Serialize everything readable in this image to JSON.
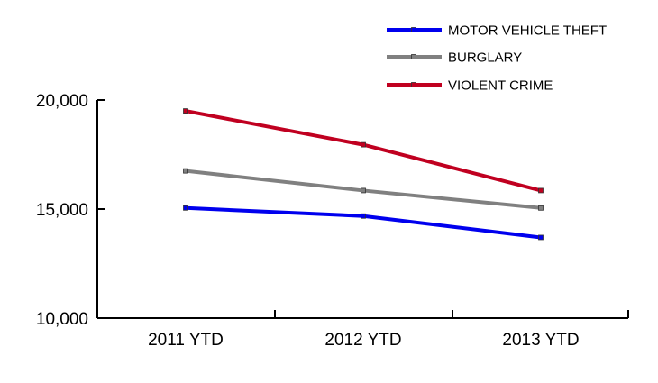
{
  "chart_data": {
    "type": "line",
    "title": "",
    "xlabel": "",
    "ylabel": "",
    "categories": [
      "2011 YTD",
      "2012 YTD",
      "2013 YTD"
    ],
    "ylim": [
      10000,
      20000
    ],
    "yticks": [
      10000,
      15000,
      20000
    ],
    "ytick_labels": [
      "10,000",
      "15,000",
      "20,000"
    ],
    "grid": false,
    "legend_position": "top-right",
    "series": [
      {
        "name": "MOTOR VEHICLE THEFT",
        "color": "#0000ee",
        "values": [
          15050,
          14680,
          13700
        ]
      },
      {
        "name": "BURGLARY",
        "color": "#808080",
        "values": [
          16750,
          15850,
          15050
        ]
      },
      {
        "name": "VIOLENT CRIME",
        "color": "#c00020",
        "values": [
          19500,
          17950,
          15850
        ]
      }
    ]
  }
}
